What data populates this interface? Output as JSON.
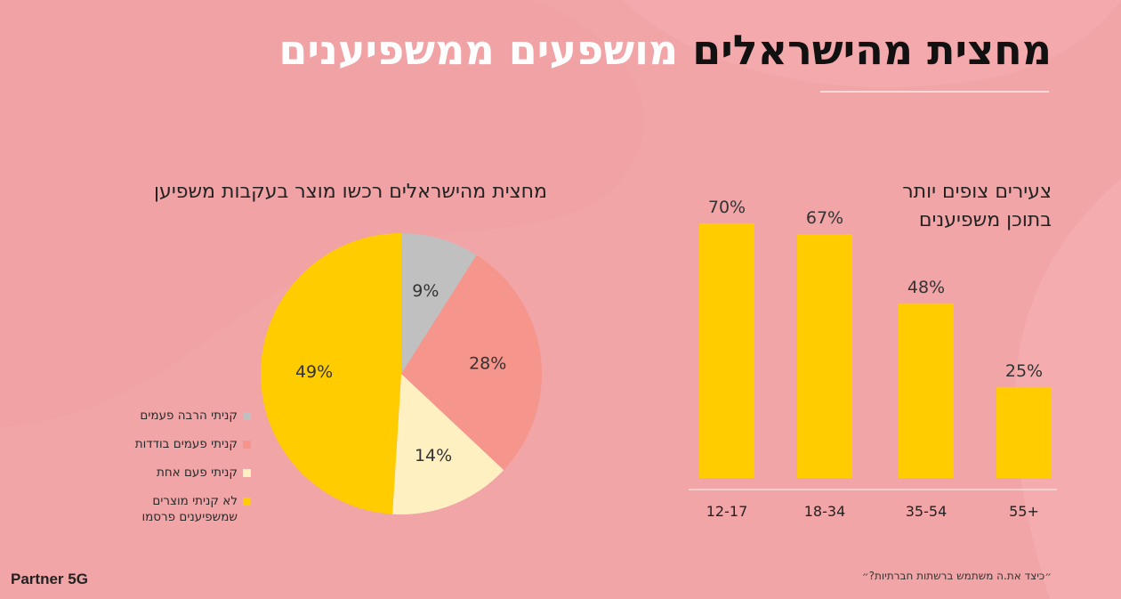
{
  "title": {
    "highlight": "מחצית מהישראלים",
    "rest": " מושפעים ממשפיענים"
  },
  "footnote": "״כיצד את.ה משתמש ברשתות חברתיות?״",
  "logo": "Partner 5G",
  "colors": {
    "background": "#f2a5a7",
    "bar": "#ffcc00",
    "pie": [
      "#c0c0c0",
      "#f5958b",
      "#fff0c2",
      "#ffcc00"
    ]
  },
  "chart_data": [
    {
      "type": "bar",
      "title_lines": [
        "צעירים צופים יותר",
        "בתוכן משפיענים"
      ],
      "categories": [
        "12-17",
        "18-34",
        "35-54",
        "55+"
      ],
      "values": [
        70,
        67,
        48,
        25
      ],
      "value_labels": [
        "70%",
        "67%",
        "48%",
        "25%"
      ],
      "ylim": [
        0,
        80
      ],
      "grid": false
    },
    {
      "type": "pie",
      "title": "מחצית מהישראלים רכשו מוצר בעקבות משפיען",
      "slices": [
        {
          "label": "קניתי הרבה פעמים",
          "value": 9,
          "value_label": "9%",
          "color": "#c0c0c0"
        },
        {
          "label": "קניתי פעמים בודדות",
          "value": 28,
          "value_label": "28%",
          "color": "#f5958b"
        },
        {
          "label": "קניתי פעם אחת",
          "value": 14,
          "value_label": "14%",
          "color": "#fff0c2"
        },
        {
          "label": "לא קניתי מוצרים שמשפיענים פרסמו",
          "value": 49,
          "value_label": "49%",
          "color": "#ffcc00"
        }
      ],
      "legend_position": "left"
    }
  ]
}
